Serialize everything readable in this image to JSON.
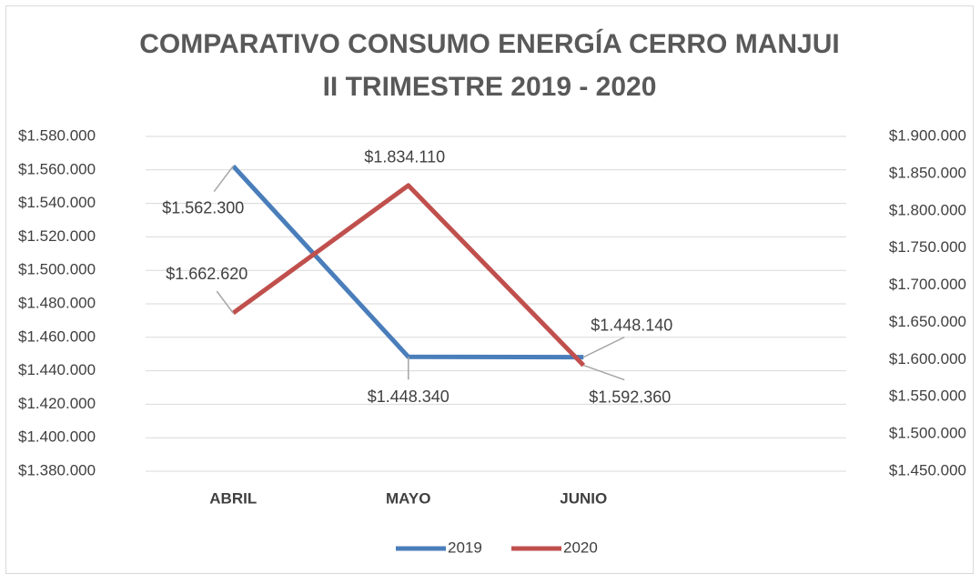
{
  "chart_data": {
    "type": "line",
    "title": [
      "COMPARATIVO CONSUMO ENERGÍA CERRO MANJUI",
      "II TRIMESTRE 2019 - 2020"
    ],
    "categories": [
      "ABRIL",
      "MAYO",
      "JUNIO",
      null
    ],
    "series": [
      {
        "name": "2019",
        "color": "#4a7ebb",
        "axis": "y",
        "values": [
          1562300,
          1448340,
          1448140,
          null
        ],
        "value_labels": [
          "$1.562.300",
          "$1.448.340",
          "$1.448.140",
          null
        ]
      },
      {
        "name": "2020",
        "color": "#c0504d",
        "axis": "y2",
        "values": [
          1662620,
          1834110,
          1592360,
          null
        ],
        "value_labels": [
          "$1.662.620",
          "$1.834.110",
          "$1.592.360",
          null
        ]
      }
    ],
    "ylim": [
      1380000,
      1580000
    ],
    "yticks": [
      {
        "value": 1380000,
        "label": "$1.380.000"
      },
      {
        "value": 1400000,
        "label": "$1.400.000"
      },
      {
        "value": 1420000,
        "label": "$1.420.000"
      },
      {
        "value": 1440000,
        "label": "$1.440.000"
      },
      {
        "value": 1460000,
        "label": "$1.460.000"
      },
      {
        "value": 1480000,
        "label": "$1.480.000"
      },
      {
        "value": 1500000,
        "label": "$1.500.000"
      },
      {
        "value": 1520000,
        "label": "$1.520.000"
      },
      {
        "value": 1540000,
        "label": "$1.540.000"
      },
      {
        "value": 1560000,
        "label": "$1.560.000"
      },
      {
        "value": 1580000,
        "label": "$1.580.000"
      }
    ],
    "y2lim": [
      1450000,
      1900000
    ],
    "y2ticks": [
      {
        "value": 1450000,
        "label": "$1.450.000"
      },
      {
        "value": 1500000,
        "label": "$1.500.000"
      },
      {
        "value": 1550000,
        "label": "$1.550.000"
      },
      {
        "value": 1600000,
        "label": "$1.600.000"
      },
      {
        "value": 1650000,
        "label": "$1.650.000"
      },
      {
        "value": 1700000,
        "label": "$1.700.000"
      },
      {
        "value": 1750000,
        "label": "$1.750.000"
      },
      {
        "value": 1800000,
        "label": "$1.800.000"
      },
      {
        "value": 1850000,
        "label": "$1.850.000"
      },
      {
        "value": 1900000,
        "label": "$1.900.000"
      }
    ],
    "grid": true,
    "legend": "bottom"
  }
}
